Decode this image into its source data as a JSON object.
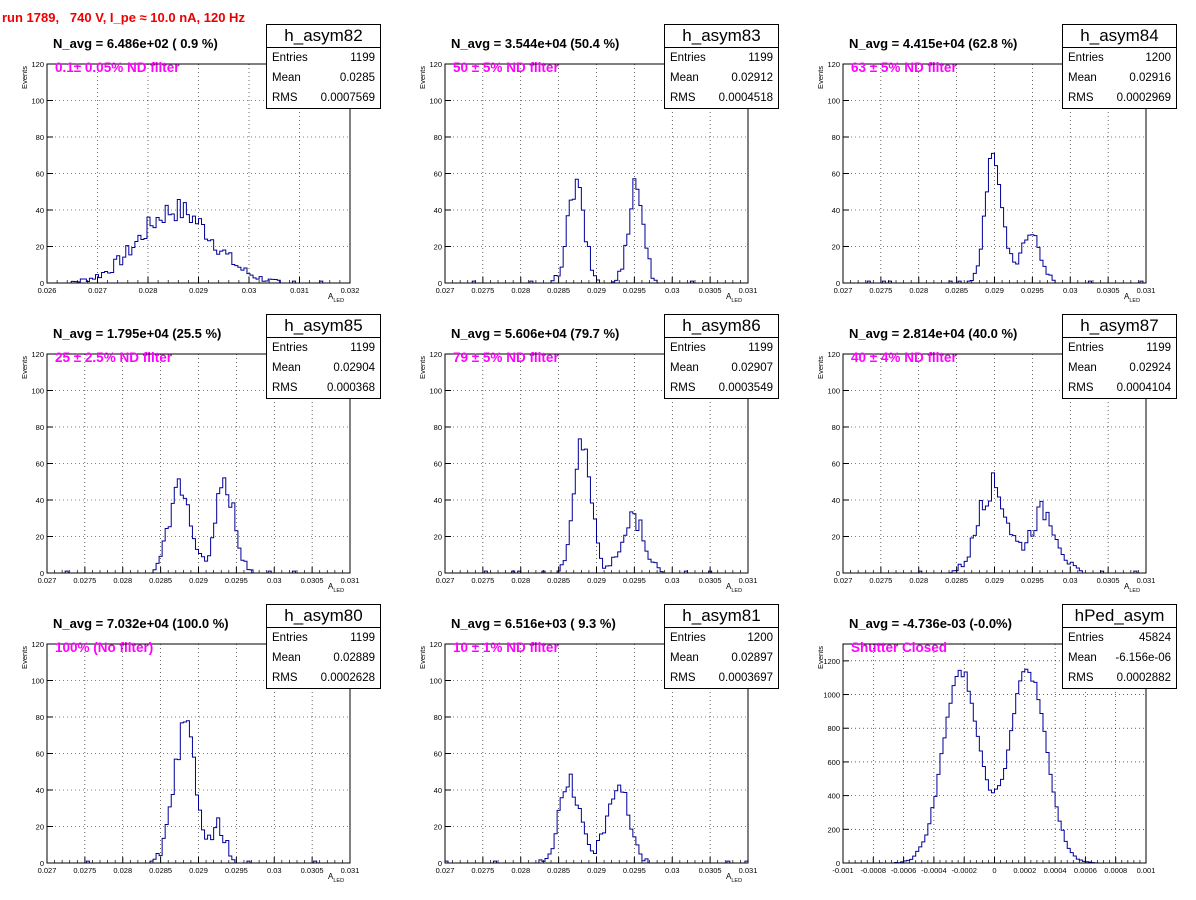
{
  "title": "run 1789,   740 V, I_pe ≈ 10.0 nA, 120 Hz",
  "colors": {
    "hist": "#000099",
    "filter_text": "#ff00ff",
    "title": "#ee0000"
  },
  "chart_data": [
    {
      "type": "histogram",
      "name": "h_asym82",
      "navg": "N_avg = 6.486e+02 ( 0.9 %)",
      "filter": "0.1± 0.05% ND filter",
      "entries": "1199",
      "mean": "0.0285",
      "rms": "0.0007569",
      "xlim": [
        0.026,
        0.032
      ],
      "ylim": [
        0,
        120
      ],
      "ylabel": "Events",
      "xlabel": "A_LED",
      "xticks": [
        "0.026",
        "0.027",
        "0.028",
        "0.029",
        "0.03",
        "0.031",
        "0.032"
      ],
      "yticks": [
        "20",
        "40",
        "60",
        "80",
        "100",
        "120"
      ],
      "peaks": [
        {
          "mu": 0.02855,
          "s": 0.00072,
          "h": 40
        }
      ],
      "grid": true
    },
    {
      "type": "histogram",
      "name": "h_asym83",
      "navg": "N_avg = 3.544e+04 (50.4 %)",
      "filter": "50 ± 5% ND filter",
      "entries": "1199",
      "mean": "0.02912",
      "rms": "0.0004518",
      "xlim": [
        0.027,
        0.031
      ],
      "ylim": [
        0,
        120
      ],
      "ylabel": "Events",
      "xlabel": "A_LED",
      "xticks": [
        "0.027",
        "0.0275",
        "0.028",
        "0.0285",
        "0.029",
        "0.0295",
        "0.03",
        "0.0305",
        "0.031"
      ],
      "yticks": [
        "20",
        "40",
        "60",
        "80",
        "100",
        "120"
      ],
      "peaks": [
        {
          "mu": 0.02873,
          "s": 0.00011,
          "h": 52
        },
        {
          "mu": 0.02952,
          "s": 0.0001,
          "h": 54
        }
      ],
      "grid": true
    },
    {
      "type": "histogram",
      "name": "h_asym84",
      "navg": "N_avg = 4.415e+04 (62.8 %)",
      "filter": "63 ± 5% ND filter",
      "entries": "1200",
      "mean": "0.02916",
      "rms": "0.0002969",
      "xlim": [
        0.027,
        0.031
      ],
      "ylim": [
        0,
        120
      ],
      "ylabel": "Events",
      "xlabel": "A_LED",
      "xticks": [
        "0.027",
        "0.0275",
        "0.028",
        "0.0285",
        "0.029",
        "0.0295",
        "0.03",
        "0.0305",
        "0.031"
      ],
      "yticks": [
        "20",
        "40",
        "60",
        "80",
        "100",
        "120"
      ],
      "peaks": [
        {
          "mu": 0.029,
          "s": 0.00011,
          "h": 70
        },
        {
          "mu": 0.02948,
          "s": 0.00012,
          "h": 32
        }
      ],
      "grid": true
    },
    {
      "type": "histogram",
      "name": "h_asym85",
      "navg": "N_avg = 1.795e+04 (25.5 %)",
      "filter": "25 ± 2.5% ND filter",
      "entries": "1199",
      "mean": "0.02904",
      "rms": "0.000368",
      "xlim": [
        0.027,
        0.031
      ],
      "ylim": [
        0,
        120
      ],
      "ylabel": "Events",
      "xlabel": "A_LED",
      "xticks": [
        "0.027",
        "0.0275",
        "0.028",
        "0.0285",
        "0.029",
        "0.0295",
        "0.03",
        "0.0305",
        "0.031"
      ],
      "yticks": [
        "20",
        "40",
        "60",
        "80",
        "100",
        "120"
      ],
      "peaks": [
        {
          "mu": 0.02875,
          "s": 0.00013,
          "h": 50
        },
        {
          "mu": 0.02935,
          "s": 0.00013,
          "h": 47
        }
      ],
      "grid": true
    },
    {
      "type": "histogram",
      "name": "h_asym86",
      "navg": "N_avg = 5.606e+04 (79.7 %)",
      "filter": "79 ± 5% ND filter",
      "entries": "1199",
      "mean": "0.02907",
      "rms": "0.0003549",
      "xlim": [
        0.027,
        0.031
      ],
      "ylim": [
        0,
        120
      ],
      "ylabel": "Events",
      "xlabel": "A_LED",
      "xticks": [
        "0.027",
        "0.0275",
        "0.028",
        "0.0285",
        "0.029",
        "0.0295",
        "0.03",
        "0.0305",
        "0.031"
      ],
      "yticks": [
        "20",
        "40",
        "60",
        "80",
        "100",
        "120"
      ],
      "peaks": [
        {
          "mu": 0.02882,
          "s": 0.00011,
          "h": 74
        },
        {
          "mu": 0.02948,
          "s": 0.00015,
          "h": 30
        }
      ],
      "grid": true
    },
    {
      "type": "histogram",
      "name": "h_asym87",
      "navg": "N_avg = 2.814e+04 (40.0 %)",
      "filter": "40 ± 4% ND filter",
      "entries": "1199",
      "mean": "0.02924",
      "rms": "0.0004104",
      "xlim": [
        0.027,
        0.031
      ],
      "ylim": [
        0,
        120
      ],
      "ylabel": "Events",
      "xlabel": "A_LED",
      "xticks": [
        "0.027",
        "0.0275",
        "0.028",
        "0.0285",
        "0.029",
        "0.0295",
        "0.03",
        "0.0305",
        "0.031"
      ],
      "yticks": [
        "20",
        "40",
        "60",
        "80",
        "100",
        "120"
      ],
      "peaks": [
        {
          "mu": 0.02898,
          "s": 0.00019,
          "h": 48
        },
        {
          "mu": 0.02965,
          "s": 0.00018,
          "h": 34
        }
      ],
      "grid": true
    },
    {
      "type": "histogram",
      "name": "h_asym80",
      "navg": "N_avg = 7.032e+04 (100.0 %)",
      "filter": "100% (No filter)",
      "entries": "1199",
      "mean": "0.02889",
      "rms": "0.0002628",
      "xlim": [
        0.027,
        0.031
      ],
      "ylim": [
        0,
        120
      ],
      "ylabel": "Events",
      "xlabel": "A_LED",
      "xticks": [
        "0.027",
        "0.0275",
        "0.028",
        "0.0285",
        "0.029",
        "0.0295",
        "0.03",
        "0.0305",
        "0.031"
      ],
      "yticks": [
        "20",
        "40",
        "60",
        "80",
        "100",
        "120"
      ],
      "peaks": [
        {
          "mu": 0.02883,
          "s": 0.00015,
          "h": 72
        },
        {
          "mu": 0.02928,
          "s": 8e-05,
          "h": 20
        }
      ],
      "grid": true
    },
    {
      "type": "histogram",
      "name": "h_asym81",
      "navg": "N_avg = 6.516e+03 ( 9.3 %)",
      "filter": "10 ± 1% ND filter",
      "entries": "1200",
      "mean": "0.02897",
      "rms": "0.0003697",
      "xlim": [
        0.027,
        0.031
      ],
      "ylim": [
        0,
        120
      ],
      "ylabel": "Events",
      "xlabel": "A_LED",
      "xticks": [
        "0.027",
        "0.0275",
        "0.028",
        "0.0285",
        "0.029",
        "0.0295",
        "0.03",
        "0.0305",
        "0.031"
      ],
      "yticks": [
        "20",
        "40",
        "60",
        "80",
        "100",
        "120"
      ],
      "peaks": [
        {
          "mu": 0.02865,
          "s": 0.00014,
          "h": 44
        },
        {
          "mu": 0.02928,
          "s": 0.00014,
          "h": 44
        }
      ],
      "grid": true
    },
    {
      "type": "histogram",
      "name": "hPed_asym",
      "navg": "N_avg = -4.736e-03 (-0.0%)",
      "filter": "Shutter Closed",
      "entries": "45824",
      "mean": "-6.156e-06",
      "rms": "0.0002882",
      "xlim": [
        -0.001,
        0.001
      ],
      "ylim": [
        0,
        1300
      ],
      "ylabel": "Events",
      "xlabel": "",
      "xticks": [
        "-0.001",
        "-0.0008",
        "-0.0006",
        "-0.0004",
        "-0.0002",
        "0",
        "0.0002",
        "0.0004",
        "0.0006",
        "0.0008",
        "0.001"
      ],
      "yticks": [
        "200",
        "400",
        "600",
        "800",
        "1000",
        "1200"
      ],
      "peaks": [
        {
          "mu": -0.00022,
          "s": 0.00012,
          "h": 1130
        },
        {
          "mu": 0.00022,
          "s": 0.00012,
          "h": 1150
        }
      ],
      "grid": true
    }
  ]
}
